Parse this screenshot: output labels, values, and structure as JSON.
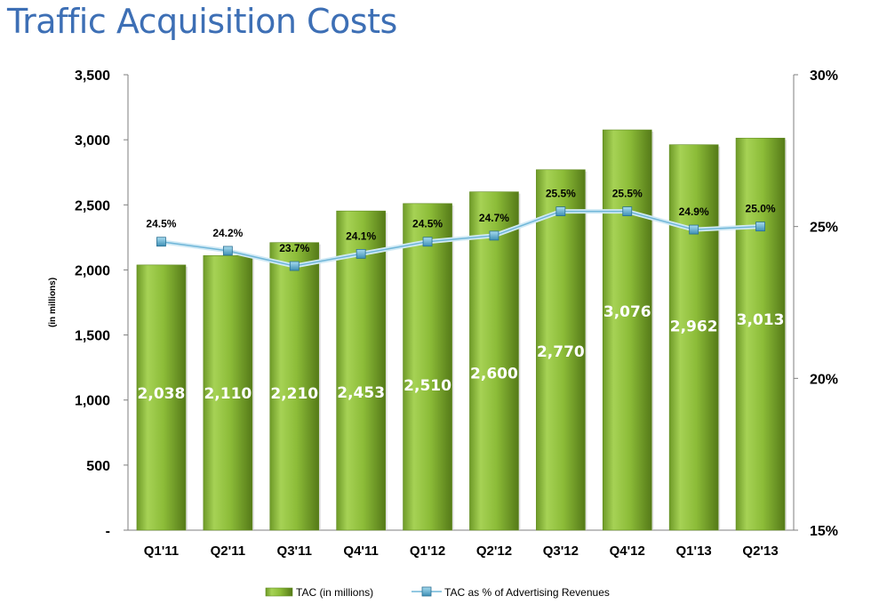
{
  "page": {
    "title": "Traffic Acquisition Costs"
  },
  "chart_data": {
    "type": "bar",
    "categories": [
      "Q1'11",
      "Q2'11",
      "Q3'11",
      "Q4'11",
      "Q1'12",
      "Q2'12",
      "Q3'12",
      "Q4'12",
      "Q1'13",
      "Q2'13"
    ],
    "series": [
      {
        "name": "TAC (in millions)",
        "type": "bar",
        "axis": "left",
        "values": [
          2038,
          2110,
          2210,
          2453,
          2510,
          2600,
          2770,
          3076,
          2962,
          3013
        ],
        "labels": [
          "2,038",
          "2,110",
          "2,210",
          "2,453",
          "2,510",
          "2,600",
          "2,770",
          "3,076",
          "2,962",
          "3,013"
        ],
        "color": "#8fbf3a"
      },
      {
        "name": "TAC as % of Advertising Revenues",
        "type": "line",
        "axis": "right",
        "values": [
          24.5,
          24.2,
          23.7,
          24.1,
          24.5,
          24.7,
          25.5,
          25.5,
          24.9,
          25.0
        ],
        "labels": [
          "24.5%",
          "24.2%",
          "23.7%",
          "24.1%",
          "24.5%",
          "24.7%",
          "25.5%",
          "25.5%",
          "24.9%",
          "25.0%"
        ],
        "color": "#8ec9e6"
      }
    ],
    "ylabel": "(in millions)",
    "ylim": [
      0,
      3500
    ],
    "y_ticks": [
      "-",
      "500",
      "1,000",
      "1,500",
      "2,000",
      "2,500",
      "3,000",
      "3,500"
    ],
    "y2lim": [
      15,
      30
    ],
    "y2_ticks": [
      "15%",
      "20%",
      "25%",
      "30%"
    ],
    "grid": false,
    "legend_position": "bottom"
  }
}
